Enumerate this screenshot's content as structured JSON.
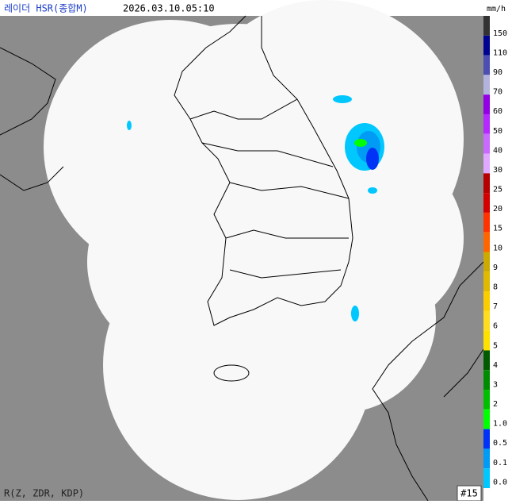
{
  "header": {
    "title": "레이더 HSR(종합M)",
    "time": "2026.03.10.05:10"
  },
  "legend": {
    "unit": "mm/h",
    "items": [
      {
        "label": "150",
        "color": "#333333"
      },
      {
        "label": "110",
        "color": "#000390"
      },
      {
        "label": "90",
        "color": "#4c4eb1"
      },
      {
        "label": "70",
        "color": "#b3b4de"
      },
      {
        "label": "60",
        "color": "#9300e4"
      },
      {
        "label": "50",
        "color": "#b329ff"
      },
      {
        "label": "40",
        "color": "#c969ff"
      },
      {
        "label": "30",
        "color": "#e0a9ff"
      },
      {
        "label": "25",
        "color": "#b40000"
      },
      {
        "label": "20",
        "color": "#d20000"
      },
      {
        "label": "15",
        "color": "#ff3300"
      },
      {
        "label": "10",
        "color": "#ff6600"
      },
      {
        "label": "9",
        "color": "#ccaa00"
      },
      {
        "label": "8",
        "color": "#e0b900"
      },
      {
        "label": "7",
        "color": "#f9cd00"
      },
      {
        "label": "6",
        "color": "#ffdc1f"
      },
      {
        "label": "5",
        "color": "#ffe100"
      },
      {
        "label": "4",
        "color": "#005a00"
      },
      {
        "label": "3",
        "color": "#008c00"
      },
      {
        "label": "2",
        "color": "#00be00"
      },
      {
        "label": "1.0",
        "color": "#00ff00"
      },
      {
        "label": "0.5",
        "color": "#0033f5"
      },
      {
        "label": "0.1",
        "color": "#009bf5"
      },
      {
        "label": "0.0",
        "color": "#00c8ff"
      }
    ]
  },
  "footer": {
    "method": "R(Z, ZDR, KDP)",
    "badge": "#15"
  }
}
